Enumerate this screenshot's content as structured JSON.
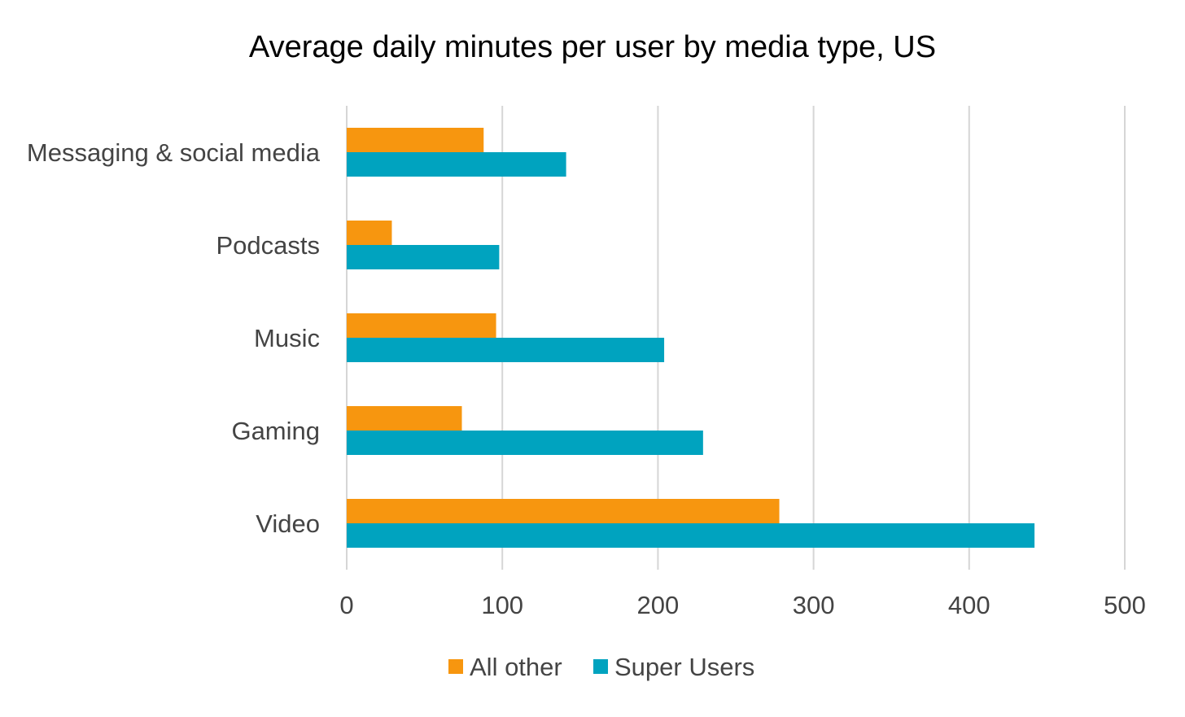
{
  "chart_data": {
    "type": "bar",
    "orientation": "horizontal",
    "title": "Average daily minutes per user by media type, US",
    "xlabel": "",
    "ylabel": "",
    "categories": [
      "Messaging & social media",
      "Podcasts",
      "Music",
      "Gaming",
      "Video"
    ],
    "series": [
      {
        "name": "All other",
        "values": [
          88,
          29,
          96,
          74,
          278
        ],
        "color": "#F7960F"
      },
      {
        "name": "Super Users",
        "values": [
          141,
          98,
          204,
          229,
          442
        ],
        "color": "#00A3BF"
      }
    ],
    "xlim": [
      0,
      500
    ],
    "xticks": [
      0,
      100,
      200,
      300,
      400,
      500
    ],
    "grid": true,
    "legend_position": "bottom-center"
  }
}
